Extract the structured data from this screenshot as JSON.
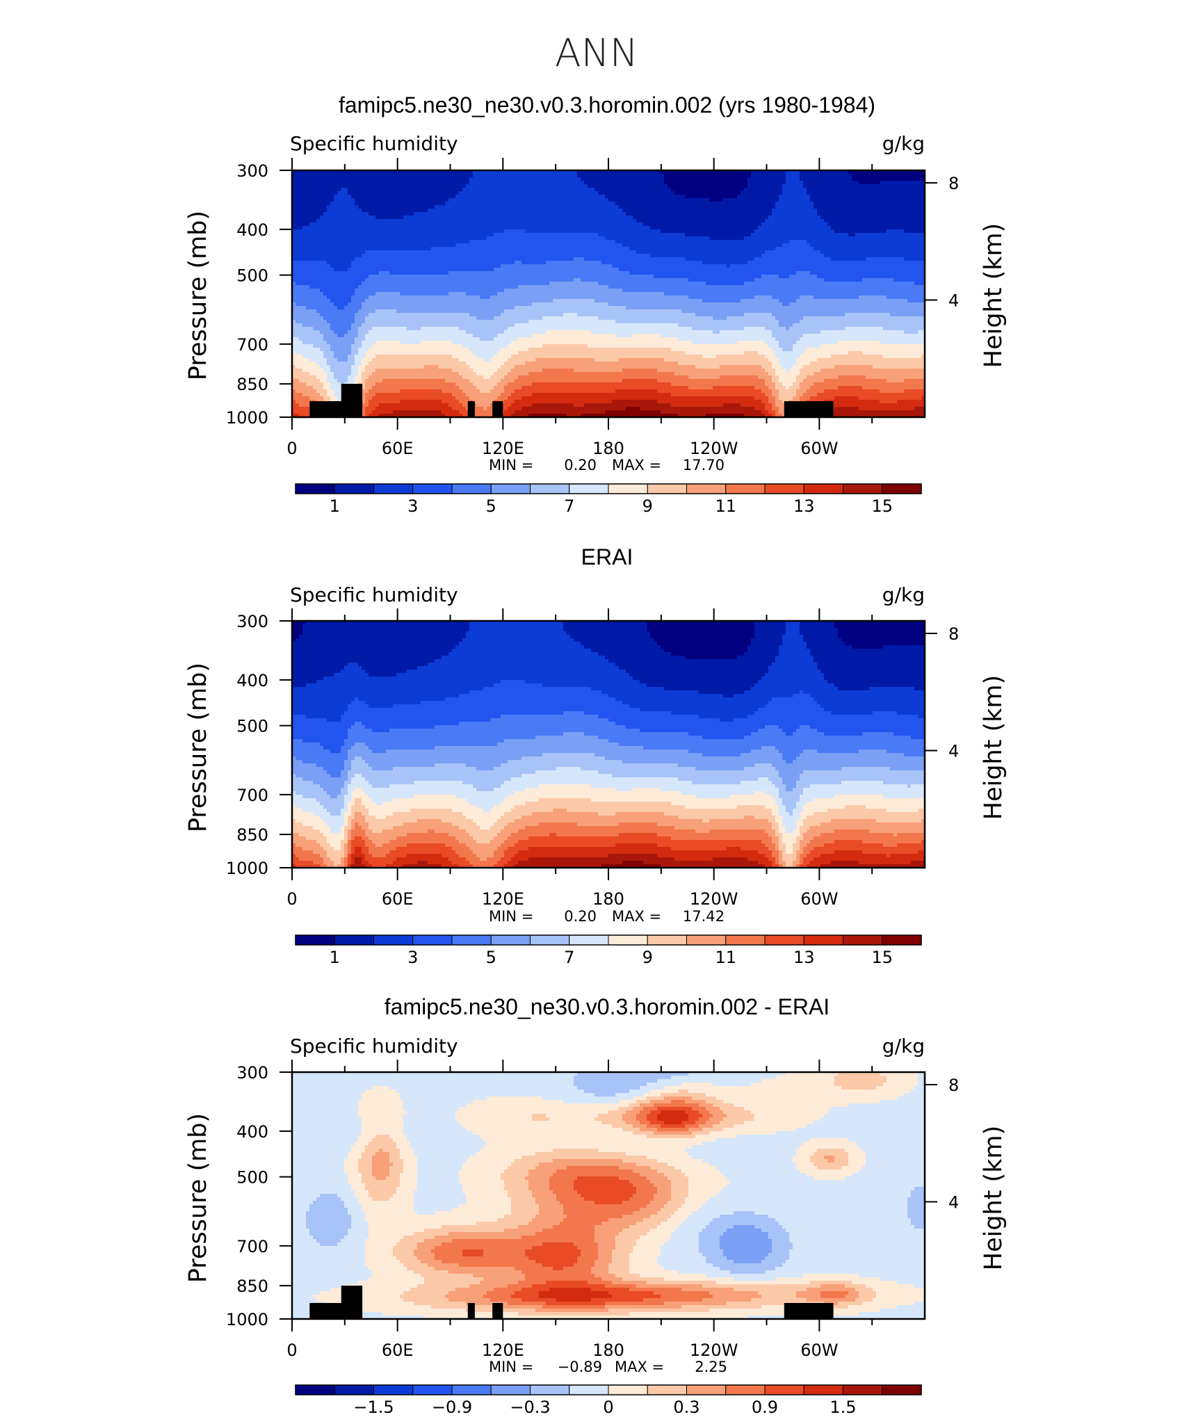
{
  "figure": {
    "main_title": "ANN"
  },
  "panels": [
    {
      "id": "model",
      "title": "famipc5.ne30_ne30.v0.3.horomin.002 (yrs 1980-1984)",
      "left_label": "Specific humidity",
      "right_label": "g/kg",
      "stats": {
        "min_label": "MIN =",
        "min": "0.20",
        "max_label": "MAX =",
        "max": "17.70"
      }
    },
    {
      "id": "obs",
      "title": "ERAI",
      "left_label": "Specific humidity",
      "right_label": "g/kg",
      "stats": {
        "min_label": "MIN =",
        "min": "0.20",
        "max_label": "MAX =",
        "max": "17.42"
      }
    },
    {
      "id": "diff",
      "title": "famipc5.ne30_ne30.v0.3.horomin.002 - ERAI",
      "left_label": "Specific humidity",
      "right_label": "g/kg",
      "stats": {
        "min_label": "MIN =",
        "min": "−0.89",
        "max_label": "MAX =",
        "max": "2.25"
      }
    }
  ],
  "chart_data": [
    {
      "type": "heatmap",
      "title": "famipc5.ne30_ne30.v0.3.horomin.002 (yrs 1980-1984)",
      "ylabel": "Pressure (mb)",
      "y2label": "Height (km)",
      "units": "g/kg",
      "x_ticks": [
        "0",
        "60E",
        "120E",
        "180",
        "120W",
        "60W"
      ],
      "y_ticks": [
        "300",
        "400",
        "500",
        "700",
        "850",
        "1000"
      ],
      "y2_ticks": [
        "8",
        "4"
      ],
      "ylim": [
        1000,
        300
      ],
      "xlim": [
        0,
        360
      ],
      "colorbar_labels": [
        "1",
        "3",
        "5",
        "7",
        "9",
        "11",
        "13",
        "15"
      ],
      "colorbar_colors": [
        "#000080",
        "#001aa8",
        "#0c3bd6",
        "#2255f0",
        "#4a7af5",
        "#7aa0f5",
        "#a8c3f7",
        "#d6e6fb",
        "#fdebd8",
        "#fcc9a8",
        "#f8a079",
        "#f3774d",
        "#e84b26",
        "#d42b10",
        "#a8170a",
        "#7f0000"
      ],
      "stats": {
        "min": 0.2,
        "max": 17.7
      },
      "terrain_blocks": [
        [
          10,
          40,
          1000,
          925
        ],
        [
          28,
          40,
          925,
          850
        ],
        [
          100,
          104,
          1000,
          925
        ],
        [
          114,
          120,
          1000,
          925
        ],
        [
          280,
          308,
          1000,
          925
        ]
      ]
    },
    {
      "type": "heatmap",
      "title": "ERAI",
      "ylabel": "Pressure (mb)",
      "y2label": "Height (km)",
      "units": "g/kg",
      "x_ticks": [
        "0",
        "60E",
        "120E",
        "180",
        "120W",
        "60W"
      ],
      "y_ticks": [
        "300",
        "400",
        "500",
        "700",
        "850",
        "1000"
      ],
      "y2_ticks": [
        "8",
        "4"
      ],
      "ylim": [
        1000,
        300
      ],
      "xlim": [
        0,
        360
      ],
      "colorbar_labels": [
        "1",
        "3",
        "5",
        "7",
        "9",
        "11",
        "13",
        "15"
      ],
      "colorbar_colors": [
        "#000080",
        "#001aa8",
        "#0c3bd6",
        "#2255f0",
        "#4a7af5",
        "#7aa0f5",
        "#a8c3f7",
        "#d6e6fb",
        "#fdebd8",
        "#fcc9a8",
        "#f8a079",
        "#f3774d",
        "#e84b26",
        "#d42b10",
        "#a8170a",
        "#7f0000"
      ],
      "stats": {
        "min": 0.2,
        "max": 17.42
      },
      "terrain_blocks": []
    },
    {
      "type": "heatmap",
      "title": "famipc5.ne30_ne30.v0.3.horomin.002 - ERAI",
      "ylabel": "Pressure (mb)",
      "y2label": "Height (km)",
      "units": "g/kg",
      "x_ticks": [
        "0",
        "60E",
        "120E",
        "180",
        "120W",
        "60W"
      ],
      "y_ticks": [
        "300",
        "400",
        "500",
        "700",
        "850",
        "1000"
      ],
      "y2_ticks": [
        "8",
        "4"
      ],
      "ylim": [
        1000,
        300
      ],
      "xlim": [
        0,
        360
      ],
      "colorbar_labels": [
        "−1.5",
        "−0.9",
        "−0.3",
        "0",
        "0.3",
        "0.9",
        "1.5"
      ],
      "colorbar_colors": [
        "#000080",
        "#001aa8",
        "#0c3bd6",
        "#2255f0",
        "#4a7af5",
        "#7aa0f5",
        "#a8c3f7",
        "#d6e6fb",
        "#fdebd8",
        "#fcc9a8",
        "#f8a079",
        "#f3774d",
        "#e84b26",
        "#d42b10",
        "#a8170a",
        "#7f0000"
      ],
      "stats": {
        "min": -0.89,
        "max": 2.25
      },
      "terrain_blocks": [
        [
          10,
          40,
          1000,
          925
        ],
        [
          28,
          40,
          925,
          850
        ],
        [
          100,
          104,
          1000,
          925
        ],
        [
          114,
          120,
          1000,
          925
        ],
        [
          280,
          308,
          1000,
          925
        ]
      ]
    }
  ]
}
